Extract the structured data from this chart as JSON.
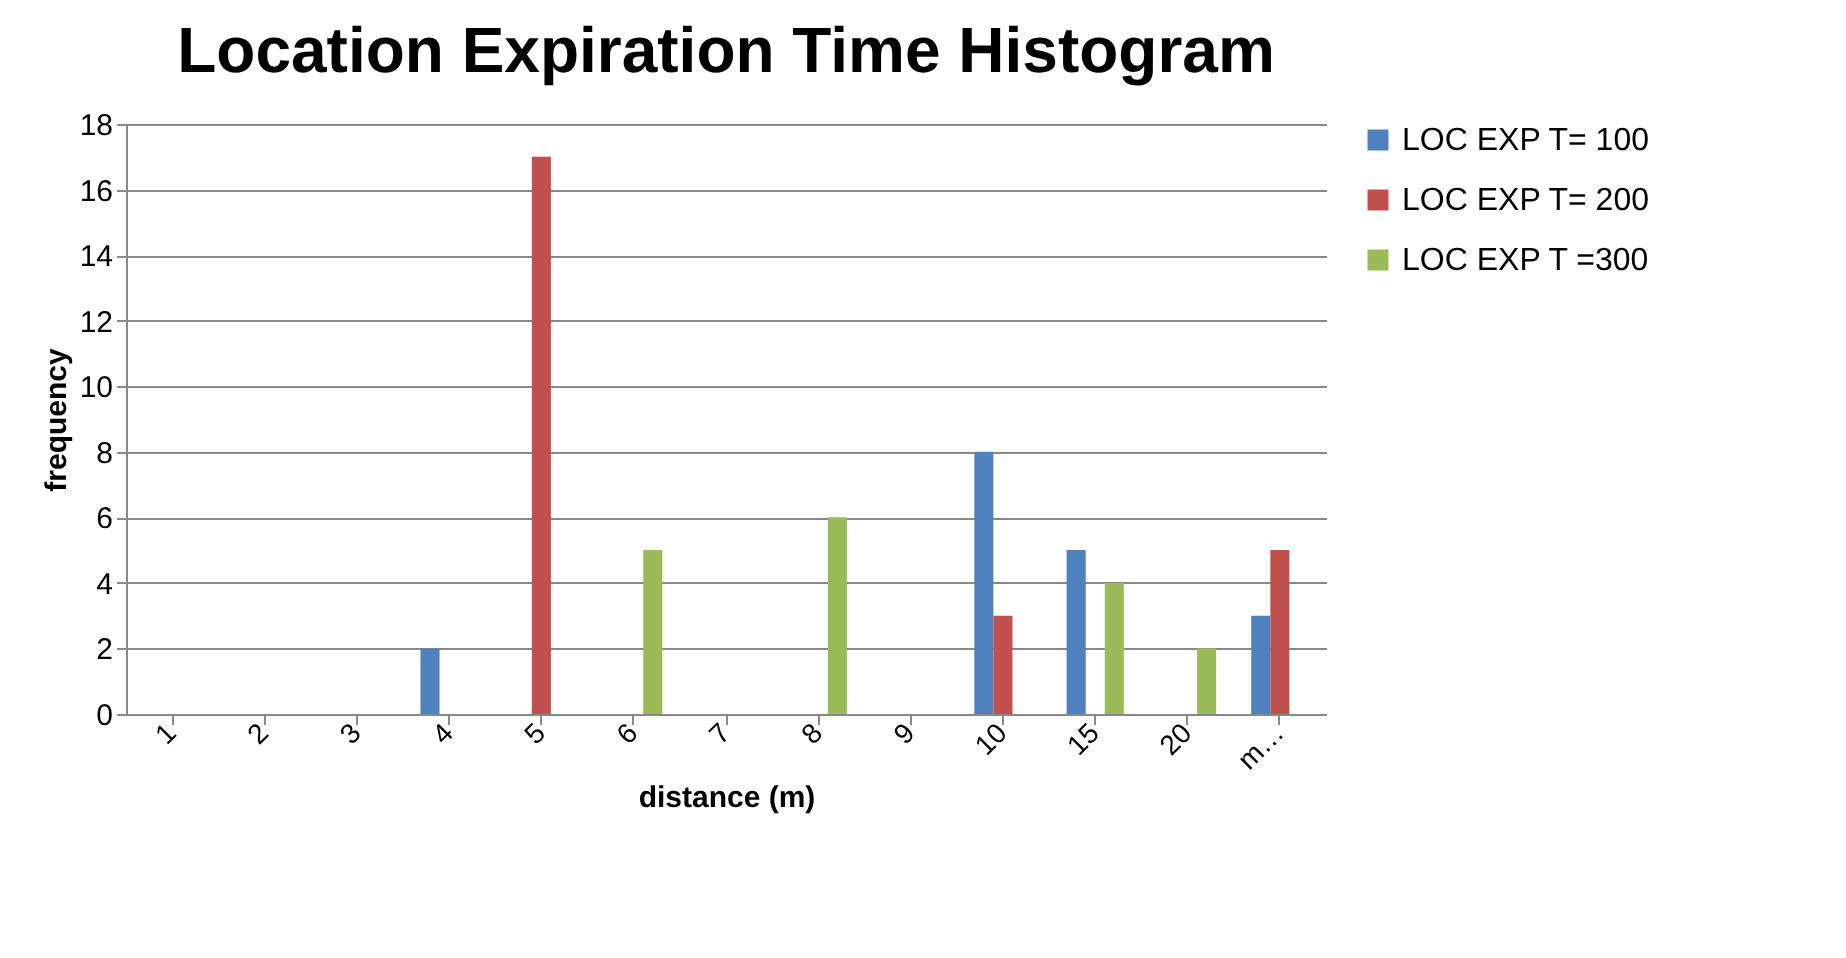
{
  "chart_data": {
    "type": "bar",
    "title": "Location Expiration Time Histogram",
    "xlabel": "distance (m)",
    "ylabel": "frequency",
    "categories": [
      "1",
      "2",
      "3",
      "4",
      "5",
      "6",
      "7",
      "8",
      "9",
      "10",
      "15",
      "20",
      "m…"
    ],
    "series": [
      {
        "name": "LOC EXP T= 100",
        "color": "#4f81bd",
        "values": [
          0,
          0,
          0,
          2,
          0,
          0,
          0,
          0,
          0,
          8,
          5,
          0,
          3
        ]
      },
      {
        "name": "LOC EXP T= 200",
        "color": "#c0504d",
        "values": [
          0,
          0,
          0,
          0,
          17,
          0,
          0,
          0,
          0,
          3,
          0,
          0,
          5
        ]
      },
      {
        "name": "LOC EXP T =300",
        "color": "#9bbb59",
        "values": [
          0,
          0,
          0,
          0,
          0,
          5,
          0,
          6,
          0,
          0,
          4,
          2,
          0
        ]
      }
    ],
    "ylim": [
      0,
      18
    ],
    "yticks": [
      0,
      2,
      4,
      6,
      8,
      10,
      12,
      14,
      16,
      18
    ],
    "grid": "y",
    "legend": "right"
  }
}
